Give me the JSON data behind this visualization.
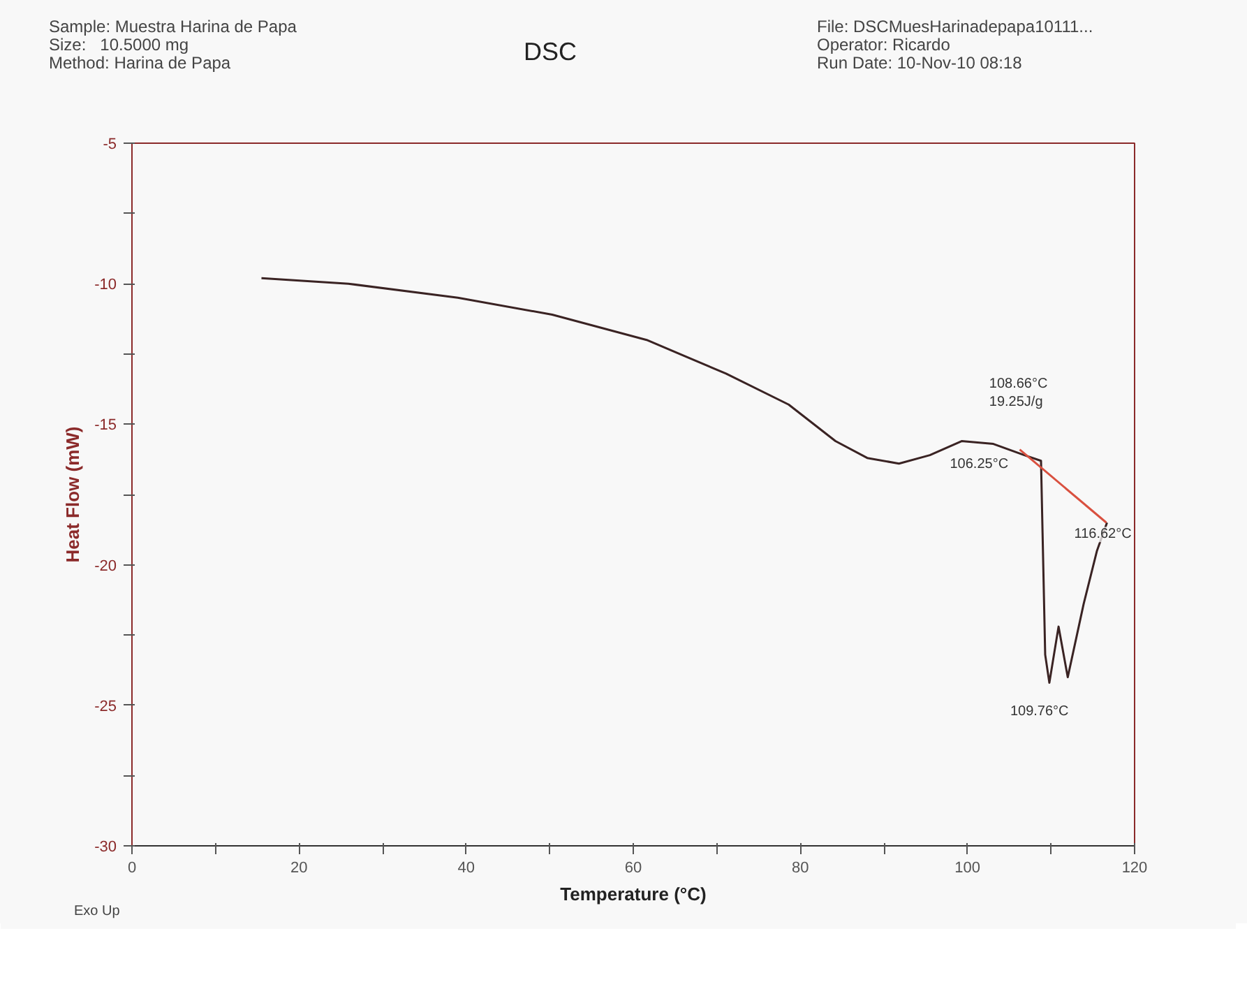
{
  "chart_data": {
    "type": "line",
    "title": "DSC",
    "xlabel": "Temperature (°C)",
    "ylabel": "Heat Flow (mW)",
    "xlim": [
      0,
      120
    ],
    "ylim": [
      -30,
      -5
    ],
    "xticks": [
      0,
      {
        "value": 10,
        "label": null
      },
      20,
      {
        "value": 30,
        "label": null
      },
      40,
      {
        "value": 50,
        "label": null
      },
      60,
      {
        "value": 70,
        "label": null
      },
      80,
      {
        "value": 90,
        "label": null
      },
      100,
      {
        "value": 110,
        "label": null
      },
      120
    ],
    "yticks": [
      -30,
      {
        "value": -27.5,
        "label": null
      },
      -25,
      {
        "value": -22.5,
        "label": null
      },
      -20,
      {
        "value": -17.5,
        "label": null
      },
      -15,
      {
        "value": -12.5,
        "label": null
      },
      -10,
      {
        "value": -7.5,
        "label": null
      },
      -5
    ],
    "grid": false,
    "marker": "none",
    "line_style": "solid",
    "series": [
      {
        "color": "#3a2323",
        "x": [
          15.5,
          25.9,
          39.0,
          50.3,
          61.6,
          71.1,
          78.6,
          84.2,
          88.0,
          91.8,
          95.5,
          99.3,
          103.1,
          106.8,
          108.8,
          109.3,
          109.8,
          110.9,
          112.0,
          113.9,
          115.5,
          116.7
        ],
        "values": [
          -9.8,
          -10.0,
          -10.5,
          -11.1,
          -12.0,
          -13.2,
          -14.3,
          -15.6,
          -16.2,
          -16.4,
          -16.1,
          -15.6,
          -15.7,
          -16.1,
          -16.3,
          -23.2,
          -24.2,
          -22.2,
          -24.0,
          -21.4,
          -19.5,
          -18.5
        ]
      },
      {
        "color": "#d9503f",
        "x": [
          106.25,
          116.62
        ],
        "values": [
          -15.9,
          -18.5
        ]
      }
    ],
    "annotations": [
      "Sample: Muestra Harina de Papa",
      "Size:   10.5000 mg",
      "Method: Harina de Papa",
      "File: DSCMuesHarinadepapa10111...",
      "Operator: Ricardo",
      "Run Date: 10-Nov-10 08:18",
      "Exo Up",
      "108.66°C\n19.25J/g",
      {
        "text": "106.25°C",
        "x": 106.25,
        "y": -15.9
      },
      {
        "text": "116.62°C",
        "x": 116.62,
        "y": -18.5
      },
      {
        "text": "109.76°C",
        "x": 109.8,
        "y": -24.2
      }
    ]
  }
}
